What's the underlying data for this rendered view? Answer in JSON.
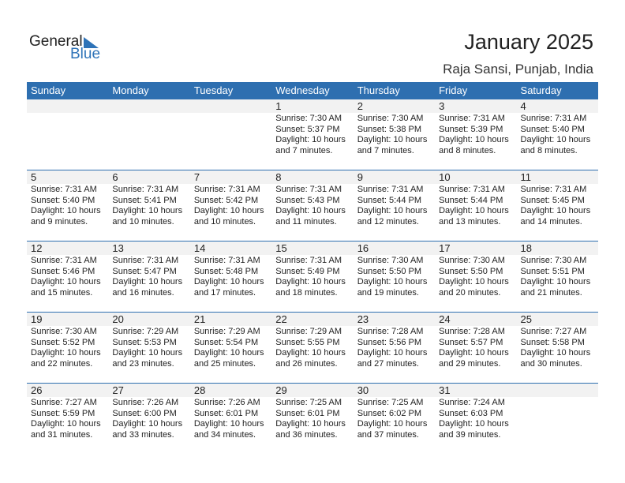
{
  "logo": {
    "text_general": "General",
    "text_blue": "Blue"
  },
  "header": {
    "title": "January 2025",
    "location": "Raja Sansi, Punjab, India"
  },
  "weekdays": [
    "Sunday",
    "Monday",
    "Tuesday",
    "Wednesday",
    "Thursday",
    "Friday",
    "Saturday"
  ],
  "colors": {
    "accent": "#2e6fb0",
    "strip": "#f2f2f2"
  },
  "weeks": [
    [
      null,
      null,
      null,
      {
        "day": "1",
        "sunrise": "Sunrise: 7:30 AM",
        "sunset": "Sunset: 5:37 PM",
        "daylight1": "Daylight: 10 hours",
        "daylight2": "and 7 minutes."
      },
      {
        "day": "2",
        "sunrise": "Sunrise: 7:30 AM",
        "sunset": "Sunset: 5:38 PM",
        "daylight1": "Daylight: 10 hours",
        "daylight2": "and 7 minutes."
      },
      {
        "day": "3",
        "sunrise": "Sunrise: 7:31 AM",
        "sunset": "Sunset: 5:39 PM",
        "daylight1": "Daylight: 10 hours",
        "daylight2": "and 8 minutes."
      },
      {
        "day": "4",
        "sunrise": "Sunrise: 7:31 AM",
        "sunset": "Sunset: 5:40 PM",
        "daylight1": "Daylight: 10 hours",
        "daylight2": "and 8 minutes."
      }
    ],
    [
      {
        "day": "5",
        "sunrise": "Sunrise: 7:31 AM",
        "sunset": "Sunset: 5:40 PM",
        "daylight1": "Daylight: 10 hours",
        "daylight2": "and 9 minutes."
      },
      {
        "day": "6",
        "sunrise": "Sunrise: 7:31 AM",
        "sunset": "Sunset: 5:41 PM",
        "daylight1": "Daylight: 10 hours",
        "daylight2": "and 10 minutes."
      },
      {
        "day": "7",
        "sunrise": "Sunrise: 7:31 AM",
        "sunset": "Sunset: 5:42 PM",
        "daylight1": "Daylight: 10 hours",
        "daylight2": "and 10 minutes."
      },
      {
        "day": "8",
        "sunrise": "Sunrise: 7:31 AM",
        "sunset": "Sunset: 5:43 PM",
        "daylight1": "Daylight: 10 hours",
        "daylight2": "and 11 minutes."
      },
      {
        "day": "9",
        "sunrise": "Sunrise: 7:31 AM",
        "sunset": "Sunset: 5:44 PM",
        "daylight1": "Daylight: 10 hours",
        "daylight2": "and 12 minutes."
      },
      {
        "day": "10",
        "sunrise": "Sunrise: 7:31 AM",
        "sunset": "Sunset: 5:44 PM",
        "daylight1": "Daylight: 10 hours",
        "daylight2": "and 13 minutes."
      },
      {
        "day": "11",
        "sunrise": "Sunrise: 7:31 AM",
        "sunset": "Sunset: 5:45 PM",
        "daylight1": "Daylight: 10 hours",
        "daylight2": "and 14 minutes."
      }
    ],
    [
      {
        "day": "12",
        "sunrise": "Sunrise: 7:31 AM",
        "sunset": "Sunset: 5:46 PM",
        "daylight1": "Daylight: 10 hours",
        "daylight2": "and 15 minutes."
      },
      {
        "day": "13",
        "sunrise": "Sunrise: 7:31 AM",
        "sunset": "Sunset: 5:47 PM",
        "daylight1": "Daylight: 10 hours",
        "daylight2": "and 16 minutes."
      },
      {
        "day": "14",
        "sunrise": "Sunrise: 7:31 AM",
        "sunset": "Sunset: 5:48 PM",
        "daylight1": "Daylight: 10 hours",
        "daylight2": "and 17 minutes."
      },
      {
        "day": "15",
        "sunrise": "Sunrise: 7:31 AM",
        "sunset": "Sunset: 5:49 PM",
        "daylight1": "Daylight: 10 hours",
        "daylight2": "and 18 minutes."
      },
      {
        "day": "16",
        "sunrise": "Sunrise: 7:30 AM",
        "sunset": "Sunset: 5:50 PM",
        "daylight1": "Daylight: 10 hours",
        "daylight2": "and 19 minutes."
      },
      {
        "day": "17",
        "sunrise": "Sunrise: 7:30 AM",
        "sunset": "Sunset: 5:50 PM",
        "daylight1": "Daylight: 10 hours",
        "daylight2": "and 20 minutes."
      },
      {
        "day": "18",
        "sunrise": "Sunrise: 7:30 AM",
        "sunset": "Sunset: 5:51 PM",
        "daylight1": "Daylight: 10 hours",
        "daylight2": "and 21 minutes."
      }
    ],
    [
      {
        "day": "19",
        "sunrise": "Sunrise: 7:30 AM",
        "sunset": "Sunset: 5:52 PM",
        "daylight1": "Daylight: 10 hours",
        "daylight2": "and 22 minutes."
      },
      {
        "day": "20",
        "sunrise": "Sunrise: 7:29 AM",
        "sunset": "Sunset: 5:53 PM",
        "daylight1": "Daylight: 10 hours",
        "daylight2": "and 23 minutes."
      },
      {
        "day": "21",
        "sunrise": "Sunrise: 7:29 AM",
        "sunset": "Sunset: 5:54 PM",
        "daylight1": "Daylight: 10 hours",
        "daylight2": "and 25 minutes."
      },
      {
        "day": "22",
        "sunrise": "Sunrise: 7:29 AM",
        "sunset": "Sunset: 5:55 PM",
        "daylight1": "Daylight: 10 hours",
        "daylight2": "and 26 minutes."
      },
      {
        "day": "23",
        "sunrise": "Sunrise: 7:28 AM",
        "sunset": "Sunset: 5:56 PM",
        "daylight1": "Daylight: 10 hours",
        "daylight2": "and 27 minutes."
      },
      {
        "day": "24",
        "sunrise": "Sunrise: 7:28 AM",
        "sunset": "Sunset: 5:57 PM",
        "daylight1": "Daylight: 10 hours",
        "daylight2": "and 29 minutes."
      },
      {
        "day": "25",
        "sunrise": "Sunrise: 7:27 AM",
        "sunset": "Sunset: 5:58 PM",
        "daylight1": "Daylight: 10 hours",
        "daylight2": "and 30 minutes."
      }
    ],
    [
      {
        "day": "26",
        "sunrise": "Sunrise: 7:27 AM",
        "sunset": "Sunset: 5:59 PM",
        "daylight1": "Daylight: 10 hours",
        "daylight2": "and 31 minutes."
      },
      {
        "day": "27",
        "sunrise": "Sunrise: 7:26 AM",
        "sunset": "Sunset: 6:00 PM",
        "daylight1": "Daylight: 10 hours",
        "daylight2": "and 33 minutes."
      },
      {
        "day": "28",
        "sunrise": "Sunrise: 7:26 AM",
        "sunset": "Sunset: 6:01 PM",
        "daylight1": "Daylight: 10 hours",
        "daylight2": "and 34 minutes."
      },
      {
        "day": "29",
        "sunrise": "Sunrise: 7:25 AM",
        "sunset": "Sunset: 6:01 PM",
        "daylight1": "Daylight: 10 hours",
        "daylight2": "and 36 minutes."
      },
      {
        "day": "30",
        "sunrise": "Sunrise: 7:25 AM",
        "sunset": "Sunset: 6:02 PM",
        "daylight1": "Daylight: 10 hours",
        "daylight2": "and 37 minutes."
      },
      {
        "day": "31",
        "sunrise": "Sunrise: 7:24 AM",
        "sunset": "Sunset: 6:03 PM",
        "daylight1": "Daylight: 10 hours",
        "daylight2": "and 39 minutes."
      },
      null
    ]
  ]
}
